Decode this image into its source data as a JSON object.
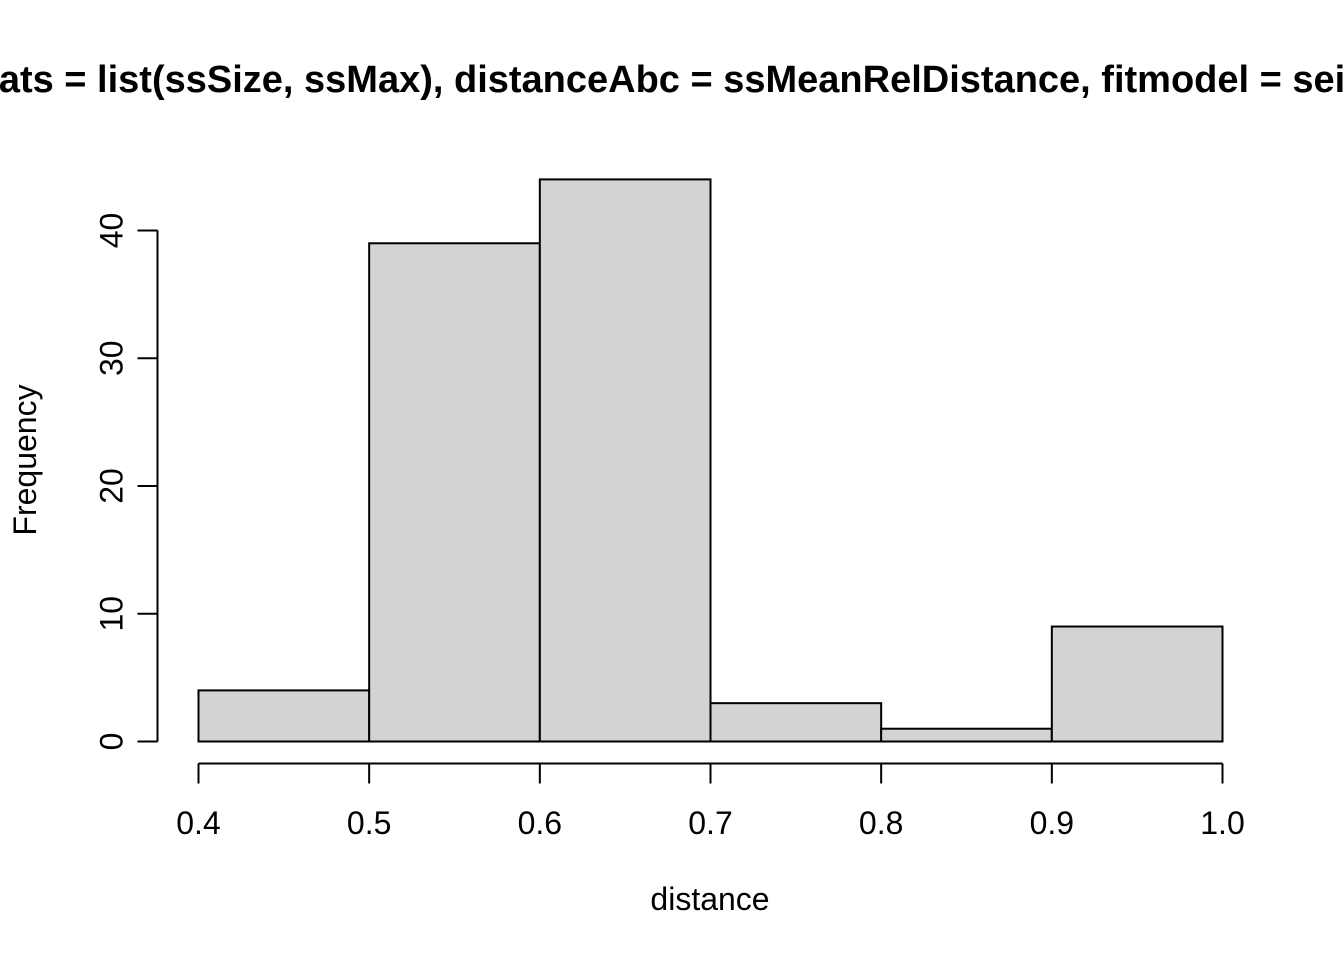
{
  "chart_data": {
    "type": "bar",
    "title": "ats = list(ssSize, ssMax), distanceAbc = ssMeanRelDistance, fitmodel = sei",
    "xlabel": "distance",
    "ylabel": "Frequency",
    "bins": [
      {
        "start": 0.4,
        "end": 0.5,
        "count": 4
      },
      {
        "start": 0.5,
        "end": 0.6,
        "count": 39
      },
      {
        "start": 0.6,
        "end": 0.7,
        "count": 44
      },
      {
        "start": 0.7,
        "end": 0.8,
        "count": 3
      },
      {
        "start": 0.8,
        "end": 0.9,
        "count": 1
      },
      {
        "start": 0.9,
        "end": 1.0,
        "count": 9
      }
    ],
    "xlim": [
      0.4,
      1.0
    ],
    "ylim": [
      0,
      44
    ],
    "x_ticks": [
      "0.4",
      "0.5",
      "0.6",
      "0.7",
      "0.8",
      "0.9",
      "1.0"
    ],
    "y_ticks": [
      "0",
      "10",
      "20",
      "30",
      "40"
    ],
    "grid": false,
    "colors": {
      "bar_fill": "#d3d3d3",
      "bar_stroke": "#000000"
    }
  }
}
